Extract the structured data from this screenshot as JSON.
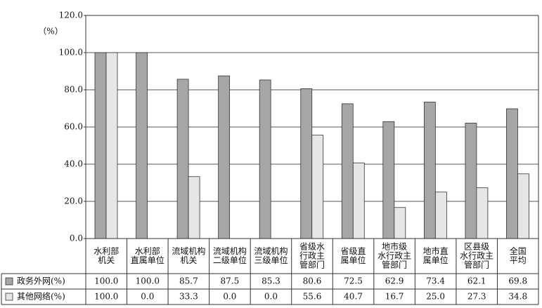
{
  "chart_data": {
    "type": "bar",
    "y_label": "（%）",
    "categories": [
      [
        "水利部",
        "机关"
      ],
      [
        "水利部",
        "直属单位"
      ],
      [
        "流域机构",
        "机关"
      ],
      [
        "流域机构",
        "二级单位"
      ],
      [
        "流域机构",
        "三级单位"
      ],
      [
        "省级水",
        "行政主",
        "管部门"
      ],
      [
        "省级直",
        "属单位"
      ],
      [
        "地市级",
        "水行政主",
        "管部门"
      ],
      [
        "地市直",
        "属单位"
      ],
      [
        "区县级",
        "水行政主",
        "管部门"
      ],
      [
        "全国",
        "平均"
      ]
    ],
    "series": [
      {
        "name": "政务外网(%)",
        "color": "#a6a6a6",
        "values": [
          100.0,
          100.0,
          85.7,
          87.5,
          85.3,
          80.6,
          72.5,
          62.9,
          73.4,
          62.1,
          69.8
        ],
        "value_labels": [
          "100.0",
          "100.0",
          "85.7",
          "87.5",
          "85.3",
          "80.6",
          "72.5",
          "62.9",
          "73.4",
          "62.1",
          "69.8"
        ]
      },
      {
        "name": "其他网络(%)",
        "color": "#e6e6e6",
        "values": [
          100.0,
          0.0,
          33.3,
          0.0,
          0.0,
          55.6,
          40.7,
          16.7,
          25.0,
          27.3,
          34.8
        ],
        "value_labels": [
          "100.0",
          "0.0",
          "33.3",
          "0.0",
          "0.0",
          "55.6",
          "40.7",
          "16.7",
          "25.0",
          "27.3",
          "34.8"
        ]
      }
    ],
    "ylim": [
      0,
      120
    ],
    "yticks": [
      {
        "value": 0,
        "label": "0.0"
      },
      {
        "value": 20,
        "label": "20.0"
      },
      {
        "value": 40,
        "label": "40.0"
      },
      {
        "value": 60,
        "label": "60.0"
      },
      {
        "value": 80,
        "label": "80.0"
      },
      {
        "value": 100,
        "label": "100.0"
      },
      {
        "value": 120,
        "label": "120.0"
      }
    ],
    "grid": true
  }
}
